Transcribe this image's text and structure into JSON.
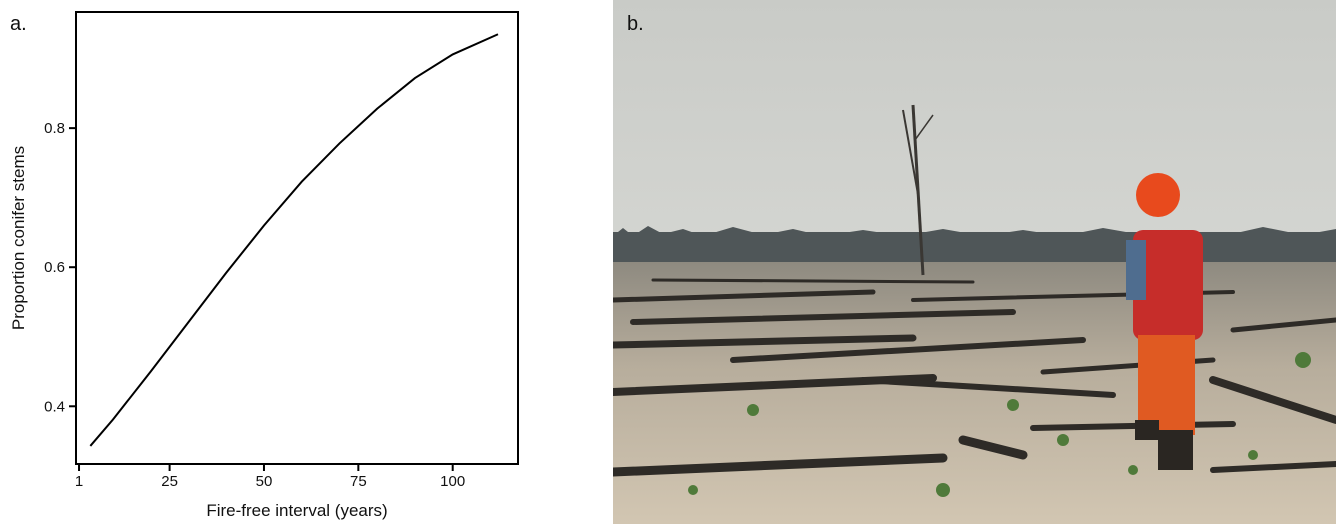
{
  "panel_labels": [
    "a.",
    "b."
  ],
  "chart_data": {
    "type": "line",
    "xlabel": "Fire-free interval (years)",
    "ylabel": "Proportion conifer stems",
    "x": [
      4,
      10,
      20,
      30,
      40,
      50,
      60,
      70,
      80,
      90,
      100,
      112
    ],
    "series": [
      {
        "color": "#000000",
        "values": [
          0.343,
          0.381,
          0.45,
          0.521,
          0.592,
          0.66,
          0.723,
          0.778,
          0.828,
          0.872,
          0.906,
          0.935
        ]
      }
    ],
    "xlim": [
      0.2,
      117.3
    ],
    "xticks": [
      1,
      25,
      50,
      75,
      100
    ],
    "ylim": [
      0.317,
      0.967
    ],
    "yticks": [
      0.4,
      0.6,
      0.8
    ]
  }
}
